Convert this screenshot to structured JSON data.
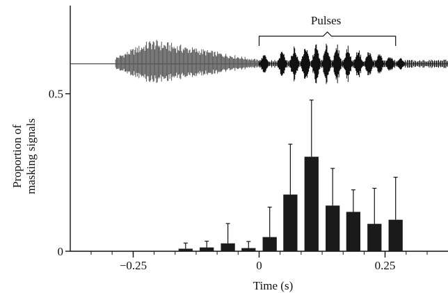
{
  "chart_data": {
    "type": "bar",
    "title": "",
    "xlabel": "Time (s)",
    "ylabel_line1": "Proportion of",
    "ylabel_line2": "masking signals",
    "xlim": [
      -0.375,
      0.375
    ],
    "ylim": [
      0,
      0.78
    ],
    "xticks": [
      -0.25,
      0,
      0.25
    ],
    "xtick_labels": [
      "−0.25",
      "0",
      "0.25"
    ],
    "xminor_step": 0.0417,
    "yticks": [
      0,
      0.5
    ],
    "ytick_labels": [
      "0",
      "0.5"
    ],
    "bar_width_s": 0.028,
    "bars": [
      {
        "x": -0.146,
        "value": 0.008,
        "err": 0.018
      },
      {
        "x": -0.104,
        "value": 0.012,
        "err": 0.02
      },
      {
        "x": -0.062,
        "value": 0.025,
        "err": 0.063
      },
      {
        "x": -0.021,
        "value": 0.01,
        "err": 0.021
      },
      {
        "x": 0.021,
        "value": 0.045,
        "err": 0.095
      },
      {
        "x": 0.062,
        "value": 0.18,
        "err": 0.16
      },
      {
        "x": 0.104,
        "value": 0.3,
        "err": 0.18
      },
      {
        "x": 0.146,
        "value": 0.145,
        "err": 0.118
      },
      {
        "x": 0.187,
        "value": 0.125,
        "err": 0.07
      },
      {
        "x": 0.229,
        "value": 0.087,
        "err": 0.113
      },
      {
        "x": 0.271,
        "value": 0.1,
        "err": 0.135
      }
    ],
    "waveform": {
      "annotation": "Pulses",
      "baseline_y": 0.595,
      "bracket_x": [
        0.0,
        0.271
      ],
      "call1_x": [
        -0.285,
        0.0
      ],
      "call2_x": [
        0.0,
        0.375
      ],
      "pulse_centers": [
        0.01,
        0.046,
        0.07,
        0.092,
        0.113,
        0.134,
        0.155,
        0.176,
        0.197,
        0.218,
        0.239,
        0.26,
        0.281
      ]
    },
    "colors": {
      "bars": "#1a1a1a",
      "axis": "#111111",
      "call1": "#555555",
      "call2": "#111111"
    }
  }
}
